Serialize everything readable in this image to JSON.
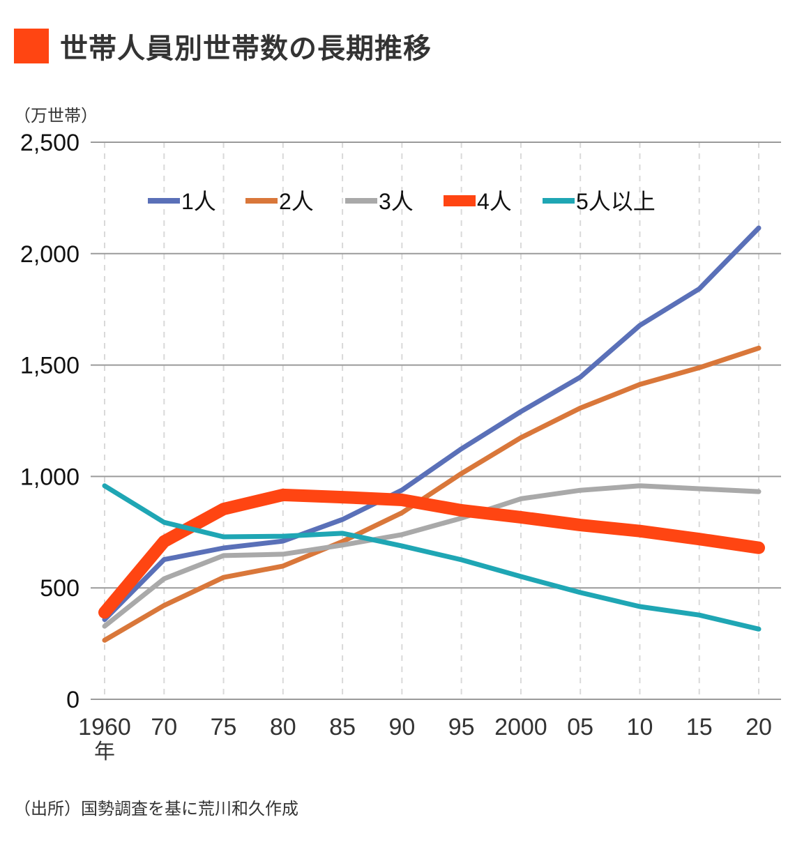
{
  "header": {
    "title": "世帯人員別世帯数の長期推移",
    "accent_color": "#FF4512"
  },
  "unit_label": "（万世帯）",
  "source_note": "（出所）国勢調査を基に荒川和久作成",
  "chart_data": {
    "type": "line",
    "title": "世帯人員別世帯数の長期推移",
    "xlabel": "",
    "ylabel": "（万世帯）",
    "x_tick_labels": [
      "1960",
      "70",
      "75",
      "80",
      "85",
      "90",
      "95",
      "2000",
      "05",
      "10",
      "15",
      "20"
    ],
    "x_sublabel": "年",
    "x_years": [
      1960,
      1970,
      1975,
      1980,
      1985,
      1990,
      1995,
      2000,
      2005,
      2010,
      2015,
      2020
    ],
    "ylim": [
      0,
      2500
    ],
    "y_ticks": [
      0,
      500,
      1000,
      1500,
      2000,
      2500
    ],
    "y_tick_labels": [
      "0",
      "500",
      "1,000",
      "1,500",
      "2,000",
      "2,500"
    ],
    "grid": {
      "horizontal": true,
      "vertical": "dashed"
    },
    "legend_position": "top-center",
    "series": [
      {
        "name": "1人",
        "color": "#5A70B8",
        "emphasis": false,
        "values": [
          358,
          627,
          679,
          710,
          807,
          939,
          1124,
          1291,
          1446,
          1678,
          1842,
          2115
        ]
      },
      {
        "name": "2人",
        "color": "#D9773A",
        "emphasis": false,
        "values": [
          265,
          421,
          547,
          598,
          708,
          837,
          1013,
          1174,
          1307,
          1413,
          1488,
          1576
        ]
      },
      {
        "name": "3人",
        "color": "#A9A9A9",
        "emphasis": false,
        "values": [
          328,
          541,
          645,
          651,
          692,
          739,
          813,
          900,
          938,
          958,
          945,
          932
        ]
      },
      {
        "name": "4人",
        "color": "#FF4512",
        "emphasis": true,
        "values": [
          390,
          708,
          854,
          917,
          907,
          895,
          848,
          817,
          782,
          755,
          719,
          680
        ]
      },
      {
        "name": "5人以上",
        "color": "#1FA6B4",
        "emphasis": false,
        "values": [
          958,
          794,
          729,
          732,
          745,
          688,
          626,
          551,
          479,
          416,
          378,
          315
        ]
      }
    ]
  }
}
